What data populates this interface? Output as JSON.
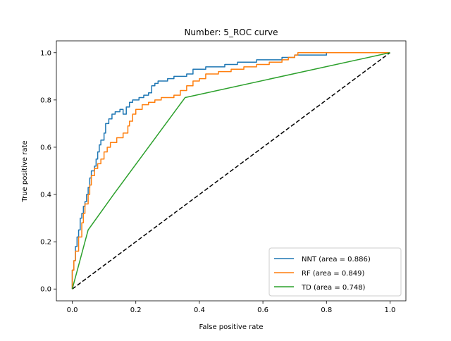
{
  "chart_data": {
    "type": "line",
    "title": "Number: 5_ROC curve",
    "xlabel": "False positive rate",
    "ylabel": "True positive rate",
    "xlim": [
      -0.05,
      1.05
    ],
    "ylim": [
      -0.05,
      1.05
    ],
    "xticks": [
      0.0,
      0.2,
      0.4,
      0.6,
      0.8,
      1.0
    ],
    "yticks": [
      0.0,
      0.2,
      0.4,
      0.6,
      0.8,
      1.0
    ],
    "xtick_labels": [
      "0.0",
      "0.2",
      "0.4",
      "0.6",
      "0.8",
      "1.0"
    ],
    "ytick_labels": [
      "0.0",
      "0.2",
      "0.4",
      "0.6",
      "0.8",
      "1.0"
    ],
    "grid": false,
    "legend_position": "lower-right",
    "series": [
      {
        "name": "NNT (area = 0.886)",
        "color": "#1f77b4",
        "style": "step",
        "points": [
          [
            0.0,
            0.0
          ],
          [
            0.0,
            0.08
          ],
          [
            0.005,
            0.12
          ],
          [
            0.01,
            0.18
          ],
          [
            0.015,
            0.22
          ],
          [
            0.02,
            0.25
          ],
          [
            0.025,
            0.3
          ],
          [
            0.03,
            0.32
          ],
          [
            0.035,
            0.35
          ],
          [
            0.04,
            0.37
          ],
          [
            0.045,
            0.4
          ],
          [
            0.05,
            0.43
          ],
          [
            0.055,
            0.47
          ],
          [
            0.06,
            0.5
          ],
          [
            0.07,
            0.52
          ],
          [
            0.075,
            0.55
          ],
          [
            0.08,
            0.58
          ],
          [
            0.085,
            0.61
          ],
          [
            0.09,
            0.63
          ],
          [
            0.1,
            0.66
          ],
          [
            0.105,
            0.7
          ],
          [
            0.115,
            0.72
          ],
          [
            0.125,
            0.74
          ],
          [
            0.135,
            0.75
          ],
          [
            0.15,
            0.76
          ],
          [
            0.16,
            0.74
          ],
          [
            0.17,
            0.77
          ],
          [
            0.18,
            0.79
          ],
          [
            0.19,
            0.8
          ],
          [
            0.21,
            0.81
          ],
          [
            0.225,
            0.82
          ],
          [
            0.24,
            0.83
          ],
          [
            0.25,
            0.86
          ],
          [
            0.26,
            0.87
          ],
          [
            0.27,
            0.88
          ],
          [
            0.3,
            0.89
          ],
          [
            0.32,
            0.9
          ],
          [
            0.36,
            0.91
          ],
          [
            0.38,
            0.93
          ],
          [
            0.42,
            0.94
          ],
          [
            0.48,
            0.95
          ],
          [
            0.52,
            0.96
          ],
          [
            0.58,
            0.97
          ],
          [
            0.62,
            0.97
          ],
          [
            0.66,
            0.98
          ],
          [
            0.7,
            0.99
          ],
          [
            0.8,
            0.99
          ],
          [
            0.8,
            1.0
          ],
          [
            1.0,
            1.0
          ]
        ]
      },
      {
        "name": "RF (area = 0.849)",
        "color": "#ff7f0e",
        "style": "step",
        "points": [
          [
            0.0,
            0.0
          ],
          [
            0.0,
            0.08
          ],
          [
            0.005,
            0.12
          ],
          [
            0.01,
            0.16
          ],
          [
            0.02,
            0.22
          ],
          [
            0.03,
            0.28
          ],
          [
            0.035,
            0.32
          ],
          [
            0.04,
            0.36
          ],
          [
            0.05,
            0.4
          ],
          [
            0.055,
            0.44
          ],
          [
            0.06,
            0.48
          ],
          [
            0.07,
            0.51
          ],
          [
            0.08,
            0.53
          ],
          [
            0.09,
            0.55
          ],
          [
            0.1,
            0.58
          ],
          [
            0.11,
            0.6
          ],
          [
            0.12,
            0.62
          ],
          [
            0.14,
            0.64
          ],
          [
            0.16,
            0.66
          ],
          [
            0.175,
            0.69
          ],
          [
            0.18,
            0.71
          ],
          [
            0.19,
            0.74
          ],
          [
            0.2,
            0.76
          ],
          [
            0.22,
            0.78
          ],
          [
            0.24,
            0.79
          ],
          [
            0.26,
            0.8
          ],
          [
            0.28,
            0.81
          ],
          [
            0.32,
            0.82
          ],
          [
            0.34,
            0.84
          ],
          [
            0.36,
            0.86
          ],
          [
            0.38,
            0.88
          ],
          [
            0.4,
            0.89
          ],
          [
            0.42,
            0.91
          ],
          [
            0.46,
            0.92
          ],
          [
            0.5,
            0.93
          ],
          [
            0.54,
            0.94
          ],
          [
            0.58,
            0.95
          ],
          [
            0.62,
            0.96
          ],
          [
            0.66,
            0.97
          ],
          [
            0.68,
            0.98
          ],
          [
            0.7,
            0.99
          ],
          [
            0.71,
            1.0
          ],
          [
            1.0,
            1.0
          ]
        ]
      },
      {
        "name": "TD (area = 0.748)",
        "color": "#2ca02c",
        "style": "line",
        "points": [
          [
            0.0,
            0.0
          ],
          [
            0.05,
            0.25
          ],
          [
            0.13,
            0.4
          ],
          [
            0.355,
            0.81
          ],
          [
            1.0,
            1.0
          ]
        ]
      }
    ],
    "reference_line": {
      "color": "#000000",
      "style": "dashed",
      "points": [
        [
          0.0,
          0.0
        ],
        [
          1.0,
          1.0
        ]
      ]
    }
  }
}
